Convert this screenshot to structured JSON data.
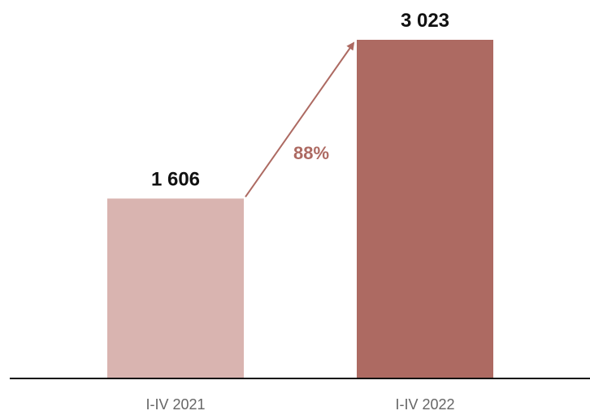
{
  "chart_data": {
    "type": "bar",
    "categories": [
      "I-IV 2021",
      "I-IV 2022"
    ],
    "values": [
      1606,
      3023
    ],
    "value_labels": [
      "1 606",
      "3 023"
    ],
    "title": "",
    "xlabel": "",
    "ylabel": "",
    "ylim": [
      0,
      3023
    ],
    "grid": false,
    "legend": "none",
    "colors": [
      "#d9b4b0",
      "#ad6a62"
    ],
    "axis_color": "#111111",
    "annotation": {
      "type": "growth-arrow",
      "from": "I-IV 2021",
      "to": "I-IV 2022",
      "text": "88%",
      "color": "#ad6a62"
    }
  }
}
